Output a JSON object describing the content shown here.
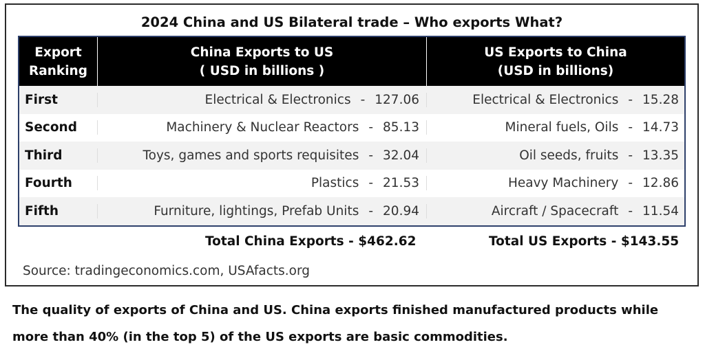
{
  "title": "2024 China and US Bilateral trade – Who exports What?",
  "headers": {
    "ranking": [
      "Export",
      "Ranking"
    ],
    "china": [
      "China Exports to US",
      "( USD in billions )"
    ],
    "us": [
      "US Exports to China",
      "(USD in billions)"
    ]
  },
  "rows": [
    {
      "rank": "First",
      "china_item": "Electrical & Electronics",
      "china_value": "127.06",
      "us_item": "Electrical & Electronics",
      "us_value": "15.28"
    },
    {
      "rank": "Second",
      "china_item": "Machinery & Nuclear Reactors",
      "china_value": "85.13",
      "us_item": "Mineral fuels, Oils",
      "us_value": "14.73"
    },
    {
      "rank": "Third",
      "china_item": "Toys, games and sports requisites",
      "china_value": "32.04",
      "us_item": "Oil seeds, fruits",
      "us_value": "13.35"
    },
    {
      "rank": "Fourth",
      "china_item": "Plastics",
      "china_value": "21.53",
      "us_item": "Heavy Machinery",
      "us_value": "12.86"
    },
    {
      "rank": "Fifth",
      "china_item": "Furniture, lightings, Prefab Units",
      "china_value": "20.94",
      "us_item": "Aircraft / Spacecraft",
      "us_value": "11.54"
    }
  ],
  "separator": "-",
  "totals": {
    "china": "Total China Exports - $462.62",
    "us": "Total US Exports - $143.55"
  },
  "source": "Source: tradingeconomics.com, USAfacts.org",
  "caption": [
    "The quality of exports of China and US. China exports finished manufactured products while",
    "more than 40% (in the top 5) of the US exports are basic commodities."
  ]
}
